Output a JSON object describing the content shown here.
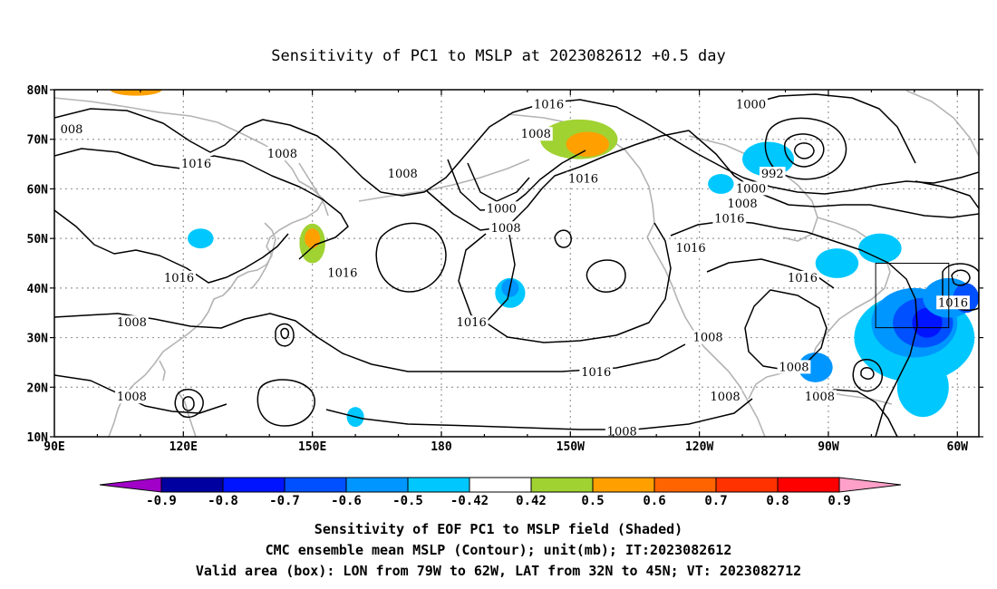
{
  "title": "Sensitivity of PC1 to MSLP at 2023082612 +0.5 day",
  "map": {
    "lat_range": [
      10,
      80
    ],
    "lon_range_east": [
      90,
      305
    ],
    "lat_ticks": [
      "80N",
      "70N",
      "60N",
      "50N",
      "40N",
      "30N",
      "20N",
      "10N"
    ],
    "lon_ticks": [
      "90E",
      "120E",
      "150E",
      "180",
      "150W",
      "120W",
      "90W",
      "60W"
    ],
    "valid_box": {
      "lon": [
        -79,
        -62
      ],
      "lat": [
        32,
        45
      ]
    },
    "grid": true,
    "colors": {
      "land_outline": "#b4b4b4",
      "contour": "#000000",
      "grid": "#9a9a9a"
    }
  },
  "contour_labels": [
    {
      "text": "008",
      "lon": 94,
      "lat": 72
    },
    {
      "text": "1016",
      "lon": 123,
      "lat": 65
    },
    {
      "text": "1008",
      "lon": 143,
      "lat": 67
    },
    {
      "text": "1008",
      "lon": 171,
      "lat": 63
    },
    {
      "text": "1016",
      "lon": 119,
      "lat": 42
    },
    {
      "text": "1008",
      "lon": 108,
      "lat": 33
    },
    {
      "text": "1016",
      "lon": 157,
      "lat": 43
    },
    {
      "text": "1008",
      "lon": 108,
      "lat": 18
    },
    {
      "text": "1016",
      "lon": 205,
      "lat": 77
    },
    {
      "text": "1008",
      "lon": 202,
      "lat": 71
    },
    {
      "text": "1016",
      "lon": 213,
      "lat": 62
    },
    {
      "text": "1000",
      "lon": 194,
      "lat": 56
    },
    {
      "text": "1008",
      "lon": 195,
      "lat": 52
    },
    {
      "text": "1016",
      "lon": 187,
      "lat": 33
    },
    {
      "text": "1016",
      "lon": 238,
      "lat": 48
    },
    {
      "text": "1016",
      "lon": 216,
      "lat": 23
    },
    {
      "text": "1008",
      "lon": 222,
      "lat": 11
    },
    {
      "text": "1000",
      "lon": 252,
      "lat": 77
    },
    {
      "text": "992",
      "lon": 257,
      "lat": 63
    },
    {
      "text": "1000",
      "lon": 252,
      "lat": 60
    },
    {
      "text": "1008",
      "lon": 250,
      "lat": 57
    },
    {
      "text": "1016",
      "lon": 247,
      "lat": 54
    },
    {
      "text": "1016",
      "lon": 264,
      "lat": 42
    },
    {
      "text": "1016",
      "lon": 299,
      "lat": 37
    },
    {
      "text": "1008",
      "lon": 242,
      "lat": 30
    },
    {
      "text": "1008",
      "lon": 262,
      "lat": 24
    },
    {
      "text": "1008",
      "lon": 246,
      "lat": 18
    },
    {
      "text": "1008",
      "lon": 268,
      "lat": 18
    }
  ],
  "sensitivity_blobs": [
    {
      "lon": 290,
      "lat": 30,
      "rx": 14,
      "ry": 9,
      "value": -0.5
    },
    {
      "lon": 290,
      "lat": 33,
      "rx": 10,
      "ry": 7,
      "value": -0.6
    },
    {
      "lon": 292,
      "lat": 33,
      "rx": 7,
      "ry": 5,
      "value": -0.7
    },
    {
      "lon": 293,
      "lat": 33,
      "rx": 3.5,
      "ry": 3,
      "value": -0.8
    },
    {
      "lon": 292,
      "lat": 20,
      "rx": 6,
      "ry": 6,
      "value": -0.5
    },
    {
      "lon": 267,
      "lat": 24,
      "rx": 4,
      "ry": 3,
      "value": -0.6
    },
    {
      "lon": 282,
      "lat": 48,
      "rx": 5,
      "ry": 3,
      "value": -0.5
    },
    {
      "lon": 272,
      "lat": 45,
      "rx": 5,
      "ry": 3,
      "value": -0.5
    },
    {
      "lon": 298,
      "lat": 38,
      "rx": 6,
      "ry": 4,
      "value": -0.6
    },
    {
      "lon": 302,
      "lat": 38,
      "rx": 3,
      "ry": 3,
      "value": -0.7
    },
    {
      "lon": 196,
      "lat": 39,
      "rx": 3.5,
      "ry": 3,
      "value": -0.5
    },
    {
      "lon": 196,
      "lat": 40,
      "rx": 2,
      "ry": 1.8,
      "value": -0.6
    },
    {
      "lon": 124,
      "lat": 50,
      "rx": 3,
      "ry": 2,
      "value": -0.5
    },
    {
      "lon": 150,
      "lat": 49,
      "rx": 3,
      "ry": 4,
      "value": 0.5
    },
    {
      "lon": 150,
      "lat": 50,
      "rx": 1.8,
      "ry": 2,
      "value": 0.6
    },
    {
      "lon": 212,
      "lat": 70,
      "rx": 9,
      "ry": 4,
      "value": 0.5
    },
    {
      "lon": 214,
      "lat": 69,
      "rx": 5,
      "ry": 2.5,
      "value": 0.6
    },
    {
      "lon": 256,
      "lat": 66,
      "rx": 6,
      "ry": 3.5,
      "value": -0.5
    },
    {
      "lon": 245,
      "lat": 61,
      "rx": 3,
      "ry": 2,
      "value": -0.5
    },
    {
      "lon": 160,
      "lat": 14,
      "rx": 2,
      "ry": 2,
      "value": -0.5
    },
    {
      "lon": 109,
      "lat": 80,
      "rx": 6,
      "ry": 1.2,
      "value": 0.6
    }
  ],
  "colorbar": {
    "levels": [
      "-0.9",
      "-0.8",
      "-0.7",
      "-0.6",
      "-0.5",
      "-0.42",
      "0.42",
      "0.5",
      "0.6",
      "0.7",
      "0.8",
      "0.9"
    ],
    "colors": [
      "#a000c8",
      "#0000a0",
      "#0014ff",
      "#0050ff",
      "#0096ff",
      "#00c8ff",
      "#ffffff",
      "#a0d232",
      "#ffa000",
      "#ff6400",
      "#ff3200",
      "#ff0000",
      "#ffa0c8"
    ]
  },
  "captions": [
    "Sensitivity of EOF PC1 to MSLP field (Shaded)",
    "CMC ensemble mean MSLP (Contour); unit(mb); IT:2023082612",
    "Valid area (box): LON from 79W to 62W, LAT from 32N to 45N; VT: 2023082712"
  ]
}
